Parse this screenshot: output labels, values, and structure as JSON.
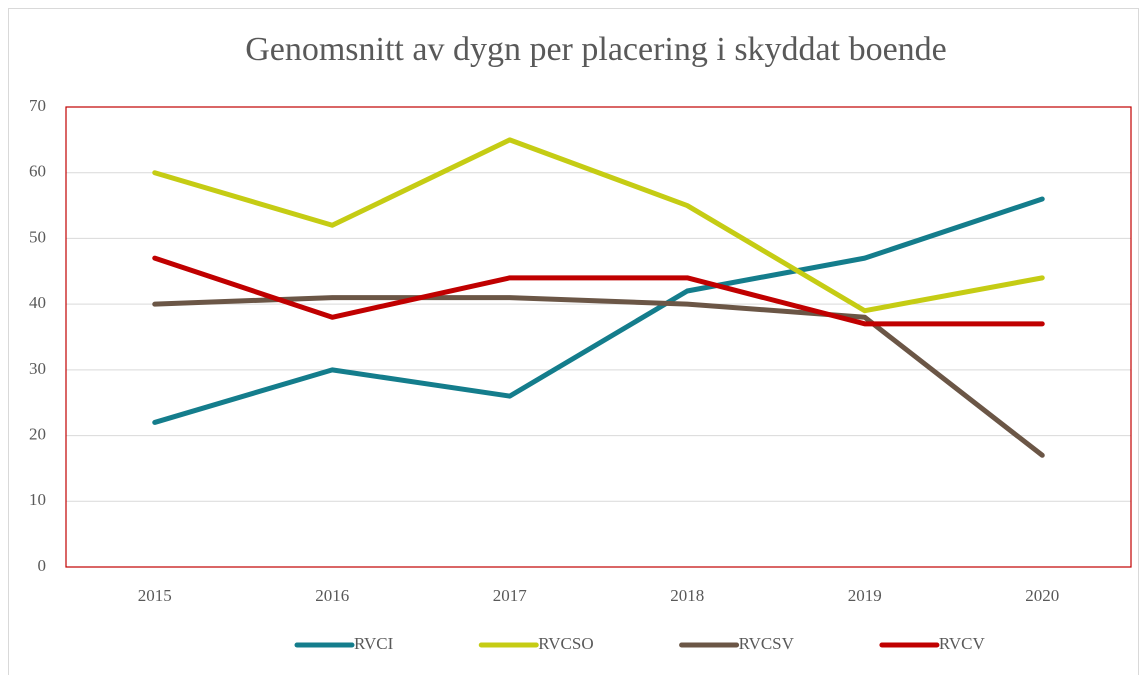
{
  "chart_data": {
    "type": "line",
    "title": "Genomsnitt av dygn per placering i skyddat boende",
    "categories": [
      "2015",
      "2016",
      "2017",
      "2018",
      "2019",
      "2020"
    ],
    "series": [
      {
        "name": "RVCI",
        "color": "#147d8c",
        "values": [
          22,
          30,
          26,
          42,
          47,
          56
        ]
      },
      {
        "name": "RVCSO",
        "color": "#c5cc14",
        "values": [
          60,
          52,
          65,
          55,
          39,
          44
        ]
      },
      {
        "name": "RVCSV",
        "color": "#6b5646",
        "values": [
          40,
          41,
          41,
          40,
          38,
          17
        ]
      },
      {
        "name": "RVCV",
        "color": "#c00000",
        "values": [
          47,
          38,
          44,
          44,
          37,
          37
        ]
      }
    ],
    "ylim": [
      0,
      70
    ],
    "yticks": [
      0,
      10,
      20,
      30,
      40,
      50,
      60,
      70
    ],
    "grid": true,
    "legend": "bottom"
  }
}
